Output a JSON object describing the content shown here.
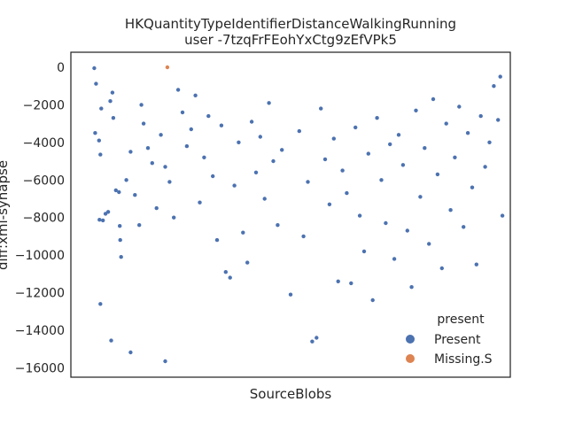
{
  "chart_data": {
    "type": "scatter",
    "title": "HKQuantityTypeIdentifierDistanceWalkingRunning",
    "subtitle": "user -7tzqFrFEohYxCtg9zEfVPk5",
    "xlabel": "SourceBlobs",
    "ylabel": "diff:xml-synapse",
    "ylim": [
      -16500,
      800
    ],
    "yticks": [
      0,
      -2000,
      -4000,
      -6000,
      -8000,
      -10000,
      -12000,
      -14000,
      -16000
    ],
    "xlim": [
      0,
      1
    ],
    "grid": false,
    "legend": {
      "title": "present",
      "placement": "bottom-right",
      "entries": [
        {
          "label": "Present",
          "color": "#4c72b0"
        },
        {
          "label": "Missing.S",
          "color": "#dd8452"
        }
      ]
    },
    "series": [
      {
        "name": "Present",
        "color": "#4c72b0",
        "points": [
          [
            0.046,
            -50
          ],
          [
            0.05,
            -880
          ],
          [
            0.048,
            -3500
          ],
          [
            0.057,
            -3900
          ],
          [
            0.06,
            -4650
          ],
          [
            0.062,
            -2200
          ],
          [
            0.066,
            -8150
          ],
          [
            0.058,
            -8120
          ],
          [
            0.072,
            -7800
          ],
          [
            0.078,
            -7700
          ],
          [
            0.083,
            -1800
          ],
          [
            0.088,
            -1350
          ],
          [
            0.09,
            -2700
          ],
          [
            0.096,
            -6550
          ],
          [
            0.103,
            -6650
          ],
          [
            0.105,
            -8450
          ],
          [
            0.106,
            -9200
          ],
          [
            0.108,
            -10100
          ],
          [
            0.06,
            -12600
          ],
          [
            0.085,
            -14550
          ],
          [
            0.13,
            -15180
          ],
          [
            0.21,
            -15650
          ],
          [
            0.12,
            -6000
          ],
          [
            0.13,
            -4500
          ],
          [
            0.14,
            -6800
          ],
          [
            0.15,
            -8400
          ],
          [
            0.155,
            -2000
          ],
          [
            0.16,
            -3000
          ],
          [
            0.17,
            -4300
          ],
          [
            0.18,
            -5100
          ],
          [
            0.19,
            -7500
          ],
          [
            0.2,
            -3600
          ],
          [
            0.21,
            -5300
          ],
          [
            0.22,
            -6100
          ],
          [
            0.23,
            -8000
          ],
          [
            0.24,
            -1200
          ],
          [
            0.25,
            -2400
          ],
          [
            0.26,
            -4200
          ],
          [
            0.27,
            -3300
          ],
          [
            0.28,
            -1500
          ],
          [
            0.29,
            -7200
          ],
          [
            0.3,
            -4800
          ],
          [
            0.31,
            -2600
          ],
          [
            0.32,
            -5800
          ],
          [
            0.33,
            -9200
          ],
          [
            0.34,
            -3100
          ],
          [
            0.35,
            -10900
          ],
          [
            0.36,
            -11200
          ],
          [
            0.37,
            -6300
          ],
          [
            0.38,
            -4000
          ],
          [
            0.39,
            -8800
          ],
          [
            0.4,
            -10400
          ],
          [
            0.41,
            -2900
          ],
          [
            0.42,
            -5600
          ],
          [
            0.43,
            -3700
          ],
          [
            0.44,
            -7000
          ],
          [
            0.45,
            -1900
          ],
          [
            0.46,
            -5000
          ],
          [
            0.47,
            -8400
          ],
          [
            0.48,
            -4400
          ],
          [
            0.5,
            -12100
          ],
          [
            0.52,
            -3400
          ],
          [
            0.53,
            -9000
          ],
          [
            0.54,
            -6100
          ],
          [
            0.55,
            -14600
          ],
          [
            0.56,
            -14400
          ],
          [
            0.57,
            -2200
          ],
          [
            0.58,
            -4900
          ],
          [
            0.59,
            -7300
          ],
          [
            0.6,
            -3800
          ],
          [
            0.61,
            -11400
          ],
          [
            0.62,
            -5500
          ],
          [
            0.63,
            -6700
          ],
          [
            0.64,
            -11500
          ],
          [
            0.65,
            -3200
          ],
          [
            0.66,
            -7900
          ],
          [
            0.67,
            -9800
          ],
          [
            0.68,
            -4600
          ],
          [
            0.69,
            -12400
          ],
          [
            0.7,
            -2700
          ],
          [
            0.71,
            -6000
          ],
          [
            0.72,
            -8300
          ],
          [
            0.73,
            -4100
          ],
          [
            0.74,
            -10200
          ],
          [
            0.75,
            -3600
          ],
          [
            0.76,
            -5200
          ],
          [
            0.77,
            -8700
          ],
          [
            0.78,
            -11700
          ],
          [
            0.79,
            -2300
          ],
          [
            0.8,
            -6900
          ],
          [
            0.81,
            -4300
          ],
          [
            0.82,
            -9400
          ],
          [
            0.83,
            -1700
          ],
          [
            0.84,
            -5700
          ],
          [
            0.85,
            -10700
          ],
          [
            0.86,
            -3000
          ],
          [
            0.87,
            -7600
          ],
          [
            0.88,
            -4800
          ],
          [
            0.89,
            -2100
          ],
          [
            0.9,
            -8500
          ],
          [
            0.91,
            -3500
          ],
          [
            0.92,
            -6400
          ],
          [
            0.93,
            -10500
          ],
          [
            0.94,
            -2600
          ],
          [
            0.95,
            -5300
          ],
          [
            0.96,
            -4000
          ],
          [
            0.97,
            -1000
          ],
          [
            0.98,
            -2800
          ],
          [
            0.99,
            -7900
          ],
          [
            0.985,
            -500
          ]
        ]
      },
      {
        "name": "Missing.S",
        "color": "#dd8452",
        "points": [
          [
            0.215,
            0
          ]
        ]
      }
    ]
  }
}
